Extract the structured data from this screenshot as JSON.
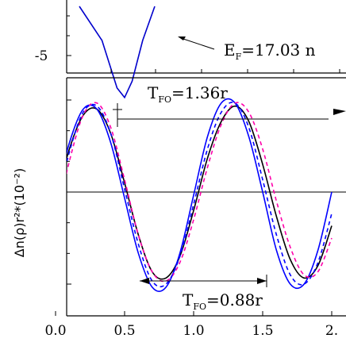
{
  "chart_data": [
    {
      "type": "line",
      "panel": "top",
      "ylabel": "",
      "ylim": [
        -6.5,
        0.5
      ],
      "ytick_labels": [
        "-5"
      ],
      "ytick_values": [
        -5
      ],
      "annotation": {
        "label": "E",
        "sub": "F",
        "value": "=17.03 n"
      },
      "series": [
        {
          "color": "#0000cc",
          "x": [
            0.0,
            0.15,
            0.25,
            0.3,
            0.35,
            0.42,
            0.5
          ],
          "y": [
            0.5,
            -2.0,
            -5.5,
            -6.2,
            -5.0,
            -2.0,
            0.5
          ]
        }
      ]
    },
    {
      "type": "line",
      "panel": "bottom",
      "ylabel": "Δn(ρ)r²*(10⁻²)",
      "xlim": [
        0.0,
        2.0
      ],
      "ylim": [
        -3.5,
        3.5
      ],
      "x_tick_labels": [
        "0.0",
        "0.5",
        "1.0",
        "1.5",
        "2."
      ],
      "x_tick_values": [
        0.0,
        0.5,
        1.0,
        1.5,
        2.0
      ],
      "y_tick_values": [
        -3,
        0,
        3
      ],
      "annotations": [
        {
          "label": "T",
          "sub": "FO",
          "value": "=1.36r"
        },
        {
          "label": "T",
          "sub": "FO",
          "value": "=0.88r"
        }
      ],
      "series": [
        {
          "style": "solid",
          "color": "#000000",
          "x": [
            0.0,
            0.1,
            0.2,
            0.3,
            0.4,
            0.5,
            0.6,
            0.7,
            0.8,
            0.9,
            1.0,
            1.1,
            1.2,
            1.3,
            1.4,
            1.5,
            1.6,
            1.7,
            1.8,
            1.9,
            2.0
          ],
          "y": [
            -0.3,
            1.4,
            2.5,
            2.7,
            1.9,
            0.3,
            -1.4,
            -2.6,
            -2.8,
            -2.1,
            -0.6,
            1.1,
            2.3,
            2.8,
            2.3,
            0.9,
            -0.8,
            -2.2,
            -2.8,
            -2.4,
            -1.1
          ]
        },
        {
          "style": "solid",
          "color": "#0000ff",
          "x": [
            0.0,
            0.1,
            0.2,
            0.3,
            0.4,
            0.5,
            0.6,
            0.7,
            0.8,
            0.9,
            1.0,
            1.1,
            1.2,
            1.3,
            1.4,
            1.5,
            1.6,
            1.7,
            1.8,
            1.9,
            2.0
          ],
          "y": [
            -0.2,
            1.6,
            2.7,
            2.7,
            1.6,
            -0.2,
            -2.0,
            -3.1,
            -3.1,
            -2.0,
            -0.1,
            1.8,
            2.9,
            2.9,
            1.8,
            0.0,
            -1.9,
            -3.0,
            -3.0,
            -1.9,
            0.0
          ]
        },
        {
          "style": "dashed",
          "color": "#ff00aa",
          "x": [
            0.0,
            0.1,
            0.2,
            0.3,
            0.4,
            0.5,
            0.6,
            0.7,
            0.8,
            0.9,
            1.0,
            1.1,
            1.2,
            1.3,
            1.4,
            1.5,
            1.6,
            1.7,
            1.8,
            1.9,
            2.0
          ],
          "y": [
            -1.0,
            1.0,
            2.5,
            2.9,
            2.1,
            0.4,
            -1.4,
            -2.6,
            -2.9,
            -2.3,
            -0.9,
            0.8,
            2.2,
            2.9,
            2.6,
            1.4,
            -0.3,
            -1.8,
            -2.7,
            -2.6,
            -1.5
          ]
        },
        {
          "style": "dashed",
          "color": "#0000ff",
          "x": [
            0.0,
            0.1,
            0.2,
            0.3,
            0.4,
            0.5,
            0.6,
            0.7,
            0.8,
            0.9,
            1.0,
            1.1,
            1.2,
            1.3,
            1.4,
            1.5,
            1.6,
            1.7,
            1.8,
            1.9,
            2.0
          ],
          "y": [
            -0.6,
            1.3,
            2.6,
            2.8,
            1.9,
            0.1,
            -1.7,
            -2.9,
            -3.0,
            -2.1,
            -0.4,
            1.4,
            2.6,
            2.9,
            2.1,
            0.4,
            -1.4,
            -2.7,
            -3.0,
            -2.3,
            -0.7
          ]
        }
      ]
    }
  ]
}
